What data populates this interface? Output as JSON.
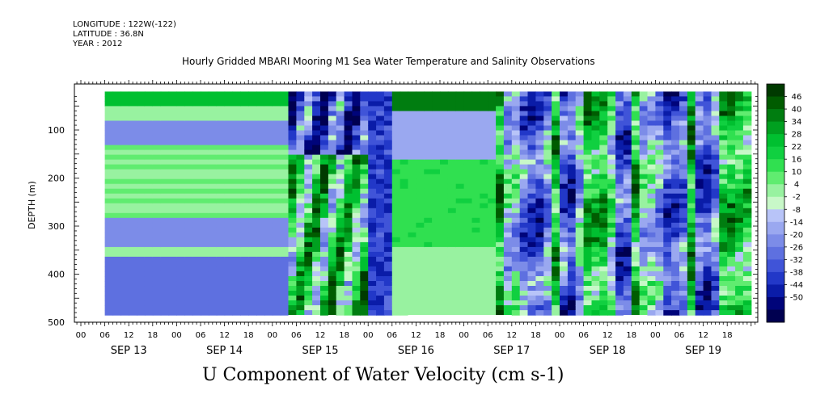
{
  "header": {
    "longitude": "LONGITUDE : 122W(-122)",
    "latitude": "LATITUDE : 36.8N",
    "year": "YEAR : 2012",
    "title": "Hourly Gridded MBARI Mooring M1 Sea Water Temperature and Salinity Observations"
  },
  "bottom_title": "U Component of Water Velocity (cm s-1)",
  "chart_data": {
    "type": "heatmap",
    "title": "Hourly Gridded MBARI Mooring M1 Sea Water Temperature and Salinity Observations",
    "xlabel": "",
    "ylabel": "DEPTH (m)",
    "variable": "U Component of Water Velocity (cm s-1)",
    "y_reversed": true,
    "ylim": [
      0,
      500
    ],
    "y_ticks": [
      100,
      200,
      300,
      400,
      500
    ],
    "y_tick_labels": [
      "100",
      "200",
      "300",
      "400",
      "500"
    ],
    "x_hour_ticks": [
      "00",
      "06",
      "12",
      "18",
      "00",
      "06",
      "12",
      "18",
      "00",
      "06",
      "12",
      "18",
      "00",
      "06",
      "12",
      "18",
      "00",
      "06",
      "12",
      "18",
      "00",
      "06",
      "12",
      "18",
      "00",
      "06",
      "12",
      "18"
    ],
    "x_day_labels": [
      "SEP 13",
      "SEP 14",
      "SEP 15",
      "SEP 16",
      "SEP 17",
      "SEP 18",
      "SEP 19"
    ],
    "colorbar": {
      "labels": [
        "46",
        "40",
        "34",
        "28",
        "22",
        "16",
        "10",
        "4",
        "-2",
        "-8",
        "-14",
        "-20",
        "-26",
        "-32",
        "-38",
        "-44",
        "-50"
      ],
      "colors": [
        "#003a00",
        "#005c00",
        "#007d10",
        "#00a020",
        "#00c030",
        "#10d040",
        "#30e050",
        "#60ec70",
        "#98f2a0",
        "#c8f8c8",
        "#b8c4f8",
        "#9aa8f0",
        "#7c8ce8",
        "#5e70e0",
        "#4054d8",
        "#2238c8",
        "#0a1ca8",
        "#00047a",
        "#000050"
      ]
    },
    "field_description_by_time": [
      {
        "from": "SEP 13 06",
        "to": "SEP 15 03",
        "pattern": "horizontal layered bands, green near surface and around 150-250 m, blue at 80-130 m and below 280 m"
      },
      {
        "from": "SEP 15 03",
        "to": "SEP 16 06",
        "pattern": "mixed vertical streaks, blue top, green mid-depth"
      },
      {
        "from": "SEP 16 06",
        "to": "SEP 17 08",
        "pattern": "horizontal bands, green surface, mostly light green/blue below"
      },
      {
        "from": "SEP 17 08",
        "to": "SEP 19 23",
        "pattern": "strong vertical streaks alternating green and blue"
      }
    ]
  },
  "colors": {
    "axis": "#000000",
    "blank": "#ffffff"
  }
}
